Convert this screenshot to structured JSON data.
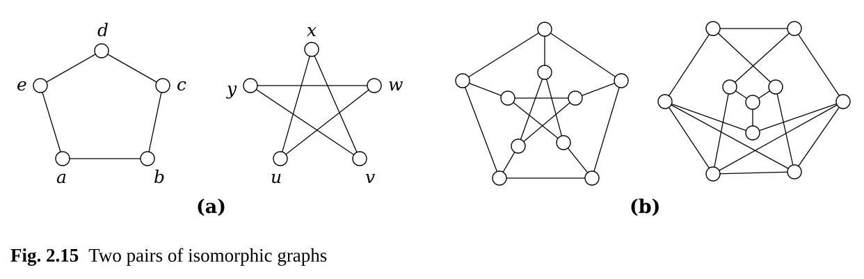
{
  "figure": {
    "graphs": [
      {
        "id": "pentagon",
        "vertices": [
          "a",
          "b",
          "c",
          "d",
          "e"
        ],
        "edges": [
          [
            "a",
            "b"
          ],
          [
            "b",
            "c"
          ],
          [
            "c",
            "d"
          ],
          [
            "d",
            "e"
          ],
          [
            "e",
            "a"
          ]
        ]
      },
      {
        "id": "pentagram",
        "vertices": [
          "u",
          "v",
          "w",
          "x",
          "y"
        ],
        "edges": [
          [
            "x",
            "u"
          ],
          [
            "x",
            "v"
          ],
          [
            "y",
            "w"
          ],
          [
            "y",
            "v"
          ],
          [
            "u",
            "w"
          ]
        ]
      },
      {
        "id": "petersen-standard",
        "vertex_count": 10,
        "edge_count": 15
      },
      {
        "id": "petersen-alternate",
        "vertex_count": 10,
        "edge_count": 15
      }
    ],
    "subfigure_labels": [
      "(a)",
      "(b)"
    ]
  },
  "caption": {
    "number": "Fig. 2.15",
    "text": "Two pairs of isomorphic graphs"
  }
}
